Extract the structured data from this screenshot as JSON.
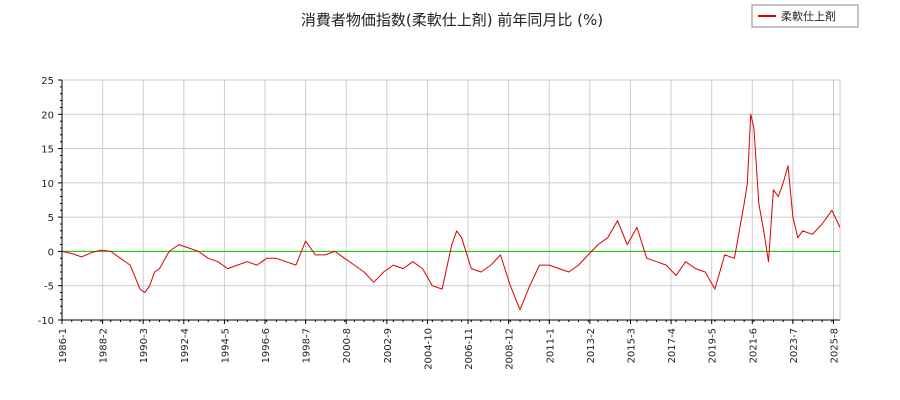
{
  "chart_data": {
    "type": "line",
    "title": "消費者物価指数(柔軟仕上剤) 前年同月比 (%)",
    "xlabel": "",
    "ylabel": "",
    "ylim": [
      -10,
      25
    ],
    "yticks": [
      -10,
      -5,
      0,
      5,
      10,
      15,
      20,
      25
    ],
    "xlim": [
      "1986-01",
      "2025-12"
    ],
    "xticks": [
      "1986-1",
      "1988-2",
      "1990-3",
      "1992-4",
      "1994-5",
      "1996-6",
      "1998-7",
      "2000-8",
      "2002-9",
      "2004-10",
      "2006-11",
      "2008-12",
      "2011-1",
      "2013-2",
      "2015-3",
      "2017-4",
      "2019-5",
      "2021-6",
      "2023-7",
      "2025-8"
    ],
    "grid": true,
    "legend_position": "top-right",
    "reference_line": {
      "y": 0,
      "color": "#00cc00"
    },
    "series": [
      {
        "name": "柔軟仕上剤",
        "color": "#dd0000",
        "x": [
          "1986-01",
          "1986-07",
          "1987-01",
          "1987-07",
          "1988-01",
          "1988-07",
          "1989-01",
          "1989-07",
          "1990-01",
          "1990-04",
          "1990-07",
          "1990-10",
          "1991-01",
          "1991-07",
          "1992-01",
          "1992-07",
          "1993-01",
          "1993-07",
          "1994-01",
          "1994-07",
          "1995-01",
          "1995-07",
          "1996-01",
          "1996-07",
          "1997-01",
          "1997-07",
          "1998-01",
          "1998-07",
          "1999-01",
          "1999-07",
          "2000-01",
          "2000-07",
          "2001-01",
          "2001-07",
          "2002-01",
          "2002-07",
          "2003-01",
          "2003-07",
          "2004-01",
          "2004-07",
          "2005-01",
          "2005-07",
          "2006-01",
          "2006-04",
          "2006-07",
          "2007-01",
          "2007-07",
          "2008-01",
          "2008-07",
          "2009-01",
          "2009-07",
          "2010-01",
          "2010-07",
          "2011-01",
          "2011-07",
          "2012-01",
          "2012-07",
          "2013-01",
          "2013-07",
          "2014-01",
          "2014-07",
          "2015-01",
          "2015-07",
          "2016-01",
          "2016-07",
          "2017-01",
          "2017-07",
          "2018-01",
          "2018-07",
          "2019-01",
          "2019-07",
          "2020-01",
          "2020-07",
          "2021-01",
          "2021-03",
          "2021-05",
          "2021-07",
          "2021-10",
          "2022-01",
          "2022-04",
          "2022-07",
          "2022-10",
          "2023-01",
          "2023-04",
          "2023-07",
          "2023-10",
          "2024-01",
          "2024-07",
          "2025-01",
          "2025-07",
          "2025-12"
        ],
        "values": [
          0,
          -0.3,
          -0.8,
          -0.2,
          0.2,
          0,
          -1,
          -2,
          -5.5,
          -6,
          -5,
          -3,
          -2.5,
          0,
          1,
          0.5,
          0,
          -1,
          -1.5,
          -2.5,
          -2,
          -1.5,
          -2,
          -1,
          -1,
          -1.5,
          -2,
          1.5,
          -0.5,
          -0.5,
          0,
          -1,
          -2,
          -3,
          -4.5,
          -3,
          -2,
          -2.5,
          -1.5,
          -2.5,
          -5,
          -5.5,
          1,
          3,
          2,
          -2.5,
          -3,
          -2,
          -0.5,
          -5,
          -8.5,
          -5,
          -2,
          -2,
          -2.5,
          -3,
          -2,
          -0.5,
          1,
          2,
          4.5,
          1,
          3.5,
          -1,
          -1.5,
          -2,
          -3.5,
          -1.5,
          -2.5,
          -3,
          -5.5,
          -0.5,
          -1,
          7,
          10,
          20,
          18,
          7,
          3,
          -1.5,
          9,
          8,
          10,
          12.5,
          5,
          2,
          3,
          2.5,
          4,
          6,
          3.5
        ]
      }
    ]
  }
}
